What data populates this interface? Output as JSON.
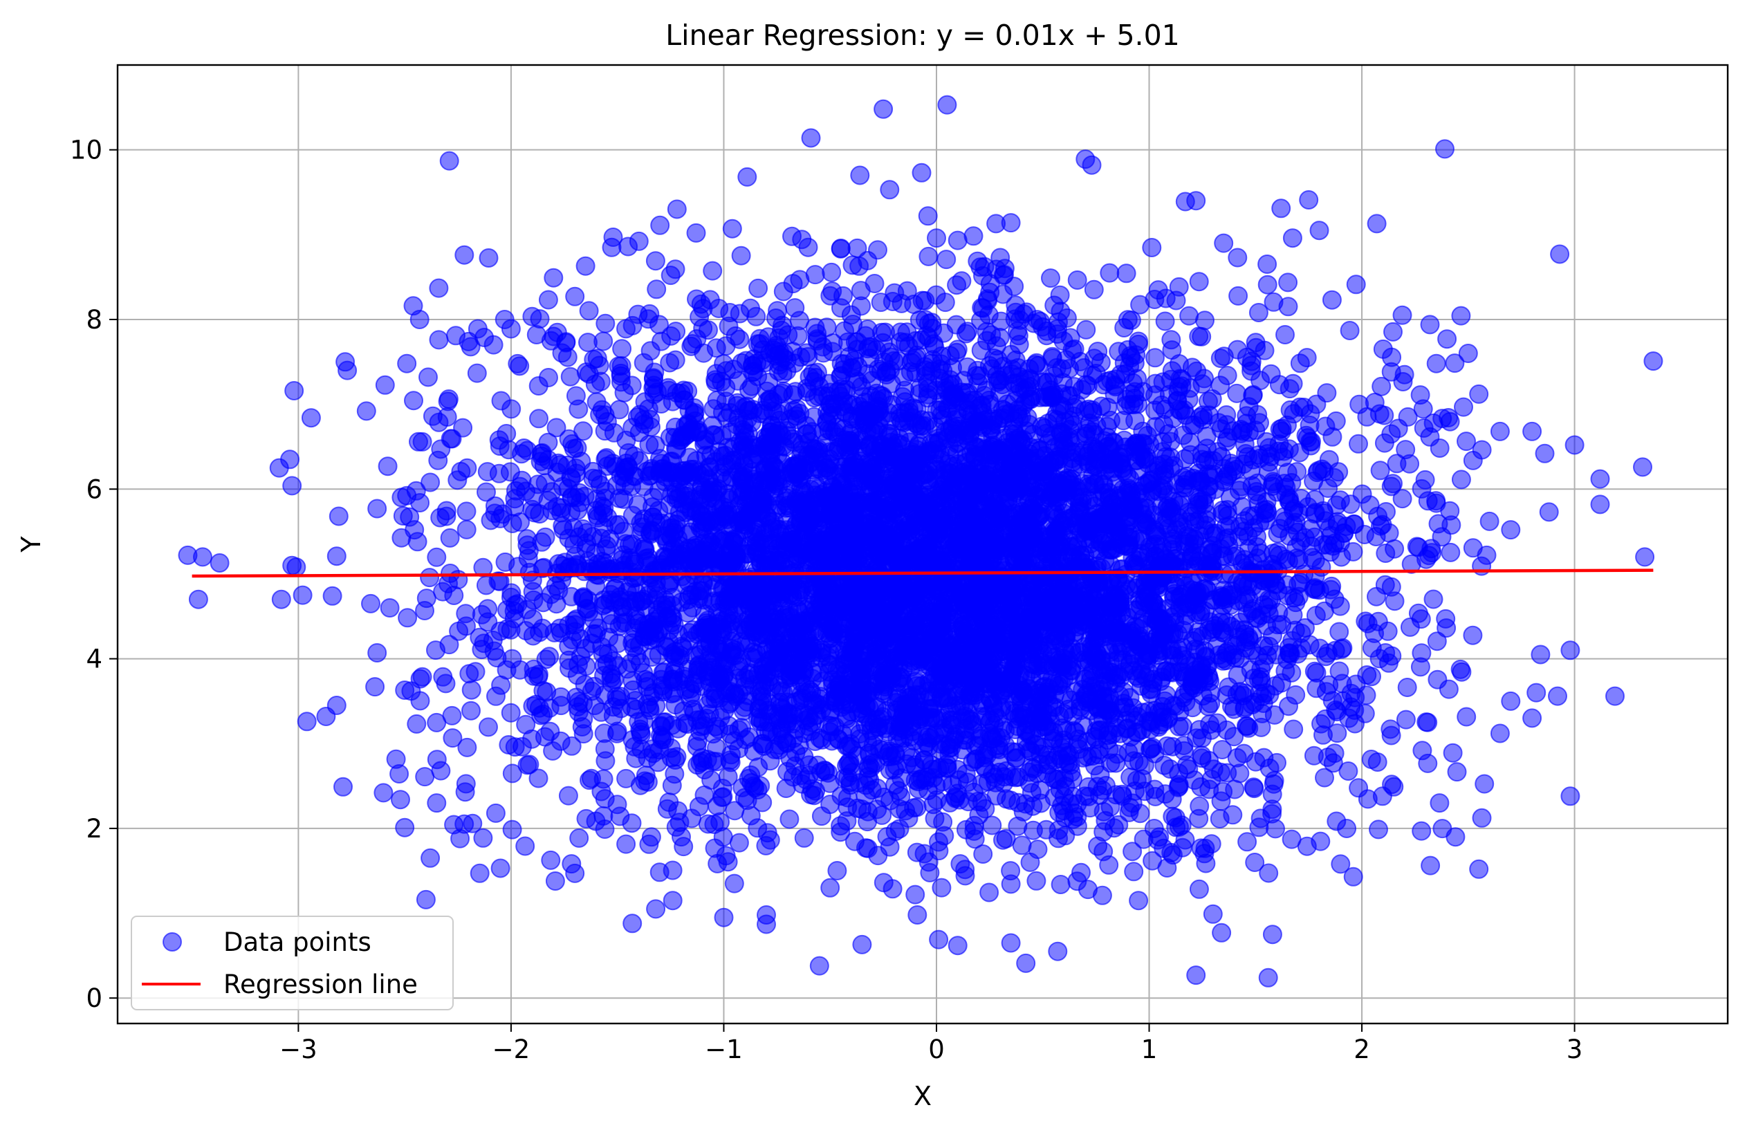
{
  "chart_data": {
    "type": "scatter",
    "title": "Linear Regression: y = 0.01x + 5.01",
    "xlabel": "X",
    "ylabel": "Y",
    "xlim": [
      -3.85,
      3.72
    ],
    "ylim": [
      -0.3,
      11.0
    ],
    "xticks": [
      -3,
      -2,
      -1,
      0,
      1,
      2,
      3
    ],
    "yticks": [
      0,
      2,
      4,
      6,
      8,
      10
    ],
    "xtick_labels": [
      "−3",
      "−2",
      "−1",
      "0",
      "1",
      "2",
      "3"
    ],
    "ytick_labels": [
      "0",
      "2",
      "4",
      "6",
      "8",
      "10"
    ],
    "grid": true,
    "legend_position": "lower-left",
    "series": [
      {
        "name": "Data points",
        "kind": "scatter",
        "color": "#0000ff",
        "alpha": 0.5,
        "points": [
          [
            -3.52,
            5.22
          ],
          [
            -3.45,
            5.2
          ],
          [
            -3.47,
            4.7
          ],
          [
            -3.37,
            5.13
          ],
          [
            -3.09,
            6.25
          ],
          [
            -3.02,
            7.16
          ],
          [
            -3.03,
            6.04
          ],
          [
            -3.04,
            6.35
          ],
          [
            -2.94,
            6.84
          ],
          [
            -3.01,
            5.08
          ],
          [
            -3.08,
            4.7
          ],
          [
            -2.98,
            4.75
          ],
          [
            -2.96,
            3.26
          ],
          [
            -2.87,
            3.32
          ],
          [
            -2.82,
            3.45
          ],
          [
            -2.82,
            5.21
          ],
          [
            -2.78,
            7.5
          ],
          [
            -2.77,
            7.4
          ],
          [
            -2.81,
            5.68
          ],
          [
            -2.84,
            4.74
          ],
          [
            -2.79,
            2.49
          ],
          [
            -2.68,
            6.92
          ],
          [
            -2.63,
            5.77
          ],
          [
            -2.58,
            6.27
          ],
          [
            -2.57,
            4.6
          ],
          [
            -2.66,
            4.65
          ],
          [
            -2.63,
            4.07
          ],
          [
            -2.64,
            3.67
          ],
          [
            -2.6,
            2.42
          ],
          [
            -2.52,
            2.34
          ],
          [
            -2.5,
            2.01
          ],
          [
            -2.49,
            7.48
          ],
          [
            -2.5,
            3.63
          ],
          [
            -2.47,
            3.62
          ],
          [
            -2.46,
            8.16
          ],
          [
            -2.43,
            8.0
          ],
          [
            -2.39,
            7.32
          ],
          [
            -2.34,
            8.37
          ],
          [
            -2.29,
            9.87
          ],
          [
            -2.26,
            7.81
          ],
          [
            -2.22,
            8.76
          ],
          [
            -2.2,
            7.74
          ],
          [
            -2.38,
            6.08
          ],
          [
            -2.3,
            6.85
          ],
          [
            -2.44,
            5.38
          ],
          [
            -2.33,
            2.68
          ],
          [
            -2.35,
            2.3
          ],
          [
            -2.38,
            1.65
          ],
          [
            -2.4,
            1.16
          ],
          [
            -2.24,
            1.88
          ],
          [
            -2.05,
            1.53
          ],
          [
            -2.03,
            8.0
          ],
          [
            -2.0,
            7.89
          ],
          [
            -1.96,
            7.45
          ],
          [
            -1.88,
            7.82
          ],
          [
            -1.8,
            7.8
          ],
          [
            -1.7,
            8.27
          ],
          [
            -1.65,
            8.63
          ],
          [
            -1.52,
            8.97
          ],
          [
            -1.45,
            8.86
          ],
          [
            -1.3,
            9.11
          ],
          [
            -1.22,
            9.3
          ],
          [
            -1.13,
            9.02
          ],
          [
            -0.96,
            9.07
          ],
          [
            -0.89,
            9.68
          ],
          [
            -0.59,
            10.14
          ],
          [
            -0.25,
            10.48
          ],
          [
            0.05,
            10.53
          ],
          [
            -0.36,
            9.7
          ],
          [
            -0.22,
            9.53
          ],
          [
            -0.07,
            9.73
          ],
          [
            -0.04,
            9.22
          ],
          [
            0.0,
            8.96
          ],
          [
            0.28,
            9.13
          ],
          [
            0.35,
            9.14
          ],
          [
            0.7,
            9.89
          ],
          [
            0.73,
            9.82
          ],
          [
            1.17,
            9.39
          ],
          [
            1.22,
            9.4
          ],
          [
            1.35,
            8.9
          ],
          [
            1.62,
            9.31
          ],
          [
            1.75,
            9.41
          ],
          [
            1.8,
            9.05
          ],
          [
            2.07,
            9.13
          ],
          [
            2.39,
            10.01
          ],
          [
            2.93,
            8.77
          ],
          [
            3.37,
            7.51
          ],
          [
            3.0,
            6.52
          ],
          [
            3.12,
            6.12
          ],
          [
            3.12,
            5.82
          ],
          [
            3.32,
            6.26
          ],
          [
            3.33,
            5.2
          ],
          [
            2.98,
            4.1
          ],
          [
            3.19,
            3.56
          ],
          [
            2.98,
            2.38
          ],
          [
            2.55,
            1.52
          ],
          [
            2.44,
            1.9
          ],
          [
            2.28,
            1.97
          ],
          [
            1.96,
            1.43
          ],
          [
            1.9,
            1.58
          ],
          [
            1.56,
            0.24
          ],
          [
            1.58,
            0.75
          ],
          [
            1.22,
            0.27
          ],
          [
            1.3,
            0.99
          ],
          [
            1.34,
            0.77
          ],
          [
            0.57,
            0.55
          ],
          [
            0.42,
            0.41
          ],
          [
            0.35,
            0.65
          ],
          [
            0.1,
            0.62
          ],
          [
            0.01,
            0.69
          ],
          [
            -0.09,
            0.98
          ],
          [
            -0.35,
            0.63
          ],
          [
            -0.55,
            0.38
          ],
          [
            -0.8,
            0.87
          ],
          [
            -0.8,
            0.98
          ],
          [
            -1.0,
            0.95
          ],
          [
            -1.24,
            1.15
          ],
          [
            -1.32,
            1.05
          ],
          [
            -1.43,
            0.88
          ],
          [
            -1.7,
            1.47
          ],
          [
            -0.95,
            1.35
          ],
          [
            -0.1,
            1.22
          ],
          [
            -0.5,
            1.3
          ],
          [
            0.78,
            1.21
          ],
          [
            0.95,
            1.15
          ],
          [
            -3.03,
            5.1
          ],
          [
            2.7,
            3.5
          ],
          [
            2.65,
            3.12
          ],
          [
            2.8,
            3.3
          ],
          [
            2.82,
            3.6
          ],
          [
            2.88,
            5.73
          ],
          [
            2.86,
            6.42
          ],
          [
            2.8,
            6.68
          ],
          [
            2.84,
            4.05
          ],
          [
            2.92,
            3.56
          ],
          [
            2.5,
            7.6
          ],
          [
            2.4,
            7.77
          ],
          [
            2.35,
            7.48
          ],
          [
            2.19,
            8.05
          ],
          [
            2.1,
            7.65
          ],
          [
            2.55,
            7.12
          ],
          [
            2.65,
            6.68
          ],
          [
            2.6,
            5.62
          ],
          [
            2.7,
            5.52
          ]
        ],
        "dense_core": {
          "x_center": 0.0,
          "x_std": 1.0,
          "y_center": 5.01,
          "y_std": 1.5,
          "count": 7000
        }
      },
      {
        "name": "Regression line",
        "kind": "line",
        "color": "#ff0000",
        "slope": 0.01,
        "intercept": 5.01,
        "x_range": [
          -3.5,
          3.37
        ]
      }
    ]
  }
}
